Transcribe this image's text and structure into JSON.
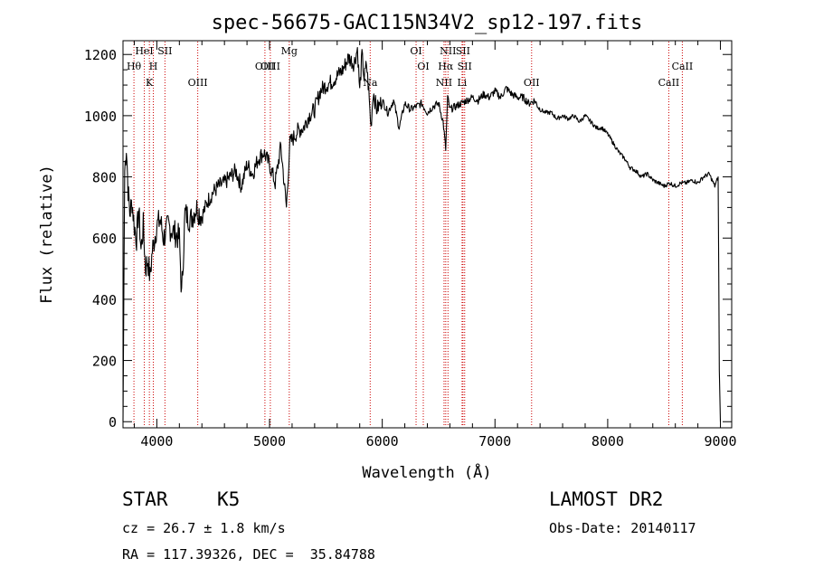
{
  "chart_data": {
    "type": "line",
    "title": "spec-56675-GAC115N34V2_sp12-197.fits",
    "xlabel": "Wavelength (Å)",
    "ylabel": "Flux (relative)",
    "xlim": [
      3700,
      9100
    ],
    "ylim": [
      -20,
      1245
    ],
    "xticks": [
      4000,
      5000,
      6000,
      7000,
      8000,
      9000
    ],
    "xtick_labels": [
      "4000",
      "5000",
      "6000",
      "7000",
      "8000",
      "9000"
    ],
    "yticks": [
      0,
      200,
      400,
      600,
      800,
      1000,
      1200
    ],
    "ytick_labels": [
      "0",
      "200",
      "400",
      "600",
      "800",
      "1000",
      "1200"
    ],
    "grid": false,
    "line_color": "#000000",
    "marker_color": "#cc0000",
    "series": [
      {
        "x": [
          3700,
          3715,
          3730,
          3745,
          3760,
          3780,
          3800,
          3820,
          3840,
          3860,
          3880,
          3900,
          3920,
          3940,
          3960,
          3980,
          4000,
          4030,
          4060,
          4100,
          4150,
          4200,
          4220,
          4250,
          4300,
          4350,
          4400,
          4450,
          4500,
          4550,
          4600,
          4650,
          4700,
          4750,
          4800,
          4850,
          4900,
          4950,
          5000,
          5050,
          5100,
          5150,
          5180,
          5200,
          5250,
          5300,
          5350,
          5400,
          5450,
          5500,
          5550,
          5600,
          5650,
          5700,
          5750,
          5780,
          5800,
          5820,
          5840,
          5860,
          5880,
          5900,
          5920,
          5950,
          6000,
          6050,
          6100,
          6150,
          6200,
          6250,
          6300,
          6350,
          6400,
          6450,
          6500,
          6540,
          6563,
          6580,
          6600,
          6650,
          6700,
          6750,
          6800,
          6850,
          6900,
          6950,
          7000,
          7050,
          7100,
          7150,
          7200,
          7250,
          7300,
          7350,
          7400,
          7450,
          7500,
          7550,
          7600,
          7650,
          7700,
          7750,
          7800,
          7850,
          7900,
          7950,
          8000,
          8050,
          8100,
          8150,
          8200,
          8250,
          8300,
          8350,
          8400,
          8450,
          8500,
          8550,
          8600,
          8650,
          8700,
          8750,
          8800,
          8850,
          8900,
          8950,
          8980,
          8990,
          9000
        ],
        "y": [
          0,
          820,
          900,
          760,
          680,
          720,
          640,
          600,
          690,
          560,
          640,
          500,
          530,
          470,
          560,
          600,
          640,
          660,
          600,
          640,
          620,
          600,
          410,
          680,
          660,
          700,
          670,
          720,
          750,
          770,
          780,
          800,
          820,
          770,
          840,
          810,
          860,
          880,
          840,
          780,
          900,
          700,
          910,
          920,
          950,
          960,
          1000,
          1020,
          1080,
          1100,
          1110,
          1130,
          1150,
          1190,
          1170,
          1220,
          1080,
          1200,
          1120,
          1170,
          1080,
          960,
          1080,
          1020,
          1050,
          1010,
          1050,
          960,
          1040,
          1020,
          1030,
          1040,
          1010,
          1030,
          1040,
          980,
          890,
          1060,
          1020,
          1030,
          1040,
          1050,
          1060,
          1050,
          1070,
          1060,
          1080,
          1060,
          1090,
          1070,
          1060,
          1060,
          1040,
          1050,
          1020,
          1010,
          1010,
          990,
          1000,
          990,
          1000,
          980,
          1000,
          980,
          960,
          960,
          940,
          910,
          880,
          860,
          830,
          820,
          800,
          810,
          790,
          780,
          770,
          780,
          770,
          780,
          780,
          790,
          780,
          800,
          810,
          770,
          800,
          170,
          0
        ]
      }
    ],
    "lines": [
      {
        "name": "Hθ",
        "x": 3797,
        "label_row": 1
      },
      {
        "name": "HeI",
        "x": 3889,
        "label_row": 0
      },
      {
        "name": "K",
        "x": 3934,
        "label_row": 2
      },
      {
        "name": "H",
        "x": 3969,
        "label_row": 1
      },
      {
        "name": "SII",
        "x": 4072,
        "label_row": 0
      },
      {
        "name": "OIII",
        "x": 4363,
        "label_row": 2
      },
      {
        "name": "OIII",
        "x": 4959,
        "label_row": 1
      },
      {
        "name": "OIII",
        "x": 5007,
        "label_row": 1
      },
      {
        "name": "Mg",
        "x": 5175,
        "label_row": 0
      },
      {
        "name": "Na",
        "x": 5893,
        "label_row": 2
      },
      {
        "name": "OI",
        "x": 6300,
        "label_row": 0
      },
      {
        "name": "OI",
        "x": 6364,
        "label_row": 1
      },
      {
        "name": "NII",
        "x": 6548,
        "label_row": 2
      },
      {
        "name": "Hα",
        "x": 6563,
        "label_row": 1
      },
      {
        "name": "NII",
        "x": 6583,
        "label_row": 0
      },
      {
        "name": "Li",
        "x": 6708,
        "label_row": 2
      },
      {
        "name": "SII",
        "x": 6716,
        "label_row": 0
      },
      {
        "name": "SII",
        "x": 6731,
        "label_row": 1
      },
      {
        "name": "OII",
        "x": 7325,
        "label_row": 2
      },
      {
        "name": "CaII",
        "x": 8542,
        "label_row": 2
      },
      {
        "name": "CaII",
        "x": 8662,
        "label_row": 1
      }
    ]
  },
  "info": {
    "class": "STAR",
    "subclass": "K5",
    "survey": "LAMOST DR2",
    "redshift": "cz = 26.7 ± 1.8 km/s",
    "obs_date": "Obs-Date: 20140117",
    "coords": "RA = 117.39326, DEC =  35.84788"
  }
}
